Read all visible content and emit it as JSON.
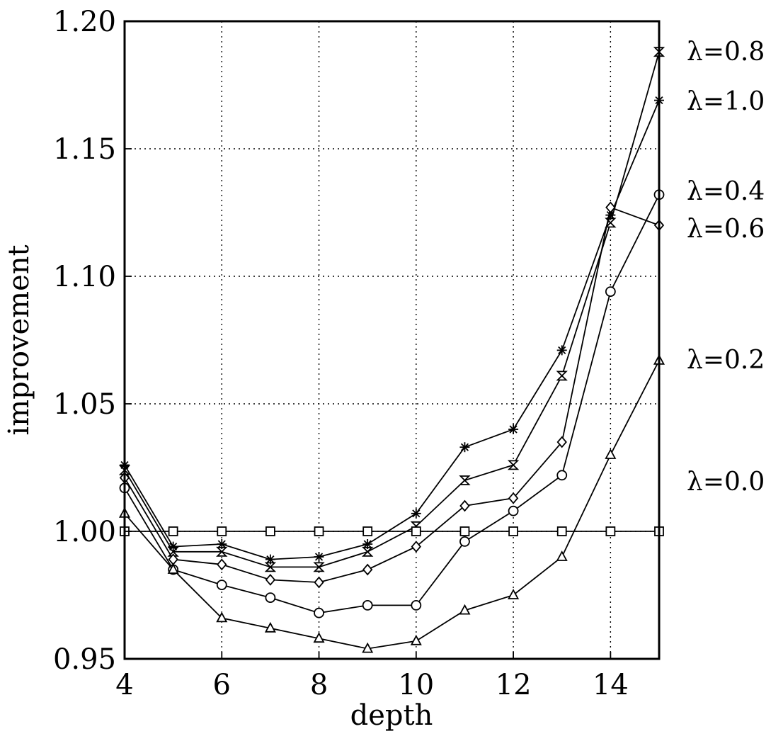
{
  "chart_data": {
    "type": "line",
    "title": "",
    "xlabel": "depth",
    "ylabel": "improvement",
    "xlim": [
      4,
      15
    ],
    "ylim": [
      0.95,
      1.2
    ],
    "xticks": [
      4,
      6,
      8,
      10,
      12,
      14
    ],
    "xtick_labels": [
      "4",
      "6",
      "8",
      "10",
      "12",
      "14"
    ],
    "yticks": [
      0.95,
      1.0,
      1.05,
      1.1,
      1.15,
      1.2
    ],
    "ytick_labels": [
      "0.95",
      "1.00",
      "1.05",
      "1.10",
      "1.15",
      "1.20"
    ],
    "grid": true,
    "x": [
      4,
      5,
      6,
      7,
      8,
      9,
      10,
      11,
      12,
      13,
      14,
      15
    ],
    "series": [
      {
        "name": "λ=0.8",
        "marker": "hourglass",
        "values": [
          1.024,
          0.992,
          0.992,
          0.986,
          0.986,
          0.992,
          1.002,
          1.02,
          1.026,
          1.061,
          1.121,
          1.188
        ]
      },
      {
        "name": "λ=1.0",
        "marker": "asterisk",
        "values": [
          1.026,
          0.994,
          0.995,
          0.989,
          0.99,
          0.995,
          1.007,
          1.033,
          1.04,
          1.071,
          1.124,
          1.169
        ]
      },
      {
        "name": "λ=0.4",
        "marker": "circle",
        "values": [
          1.017,
          0.985,
          0.979,
          0.974,
          0.968,
          0.971,
          0.971,
          0.996,
          1.008,
          1.022,
          1.094,
          1.132
        ]
      },
      {
        "name": "λ=0.6",
        "marker": "diamond",
        "values": [
          1.021,
          0.989,
          0.987,
          0.981,
          0.98,
          0.985,
          0.994,
          1.01,
          1.013,
          1.035,
          1.127,
          1.12
        ]
      },
      {
        "name": "λ=0.2",
        "marker": "triangle",
        "values": [
          1.007,
          0.985,
          0.966,
          0.962,
          0.958,
          0.954,
          0.957,
          0.969,
          0.975,
          0.99,
          1.03,
          1.067
        ]
      },
      {
        "name": "λ=0.0",
        "marker": "square",
        "values": [
          1.0,
          1.0,
          1.0,
          1.0,
          1.0,
          1.0,
          1.0,
          1.0,
          1.0,
          1.0,
          1.0,
          1.0
        ]
      }
    ]
  }
}
